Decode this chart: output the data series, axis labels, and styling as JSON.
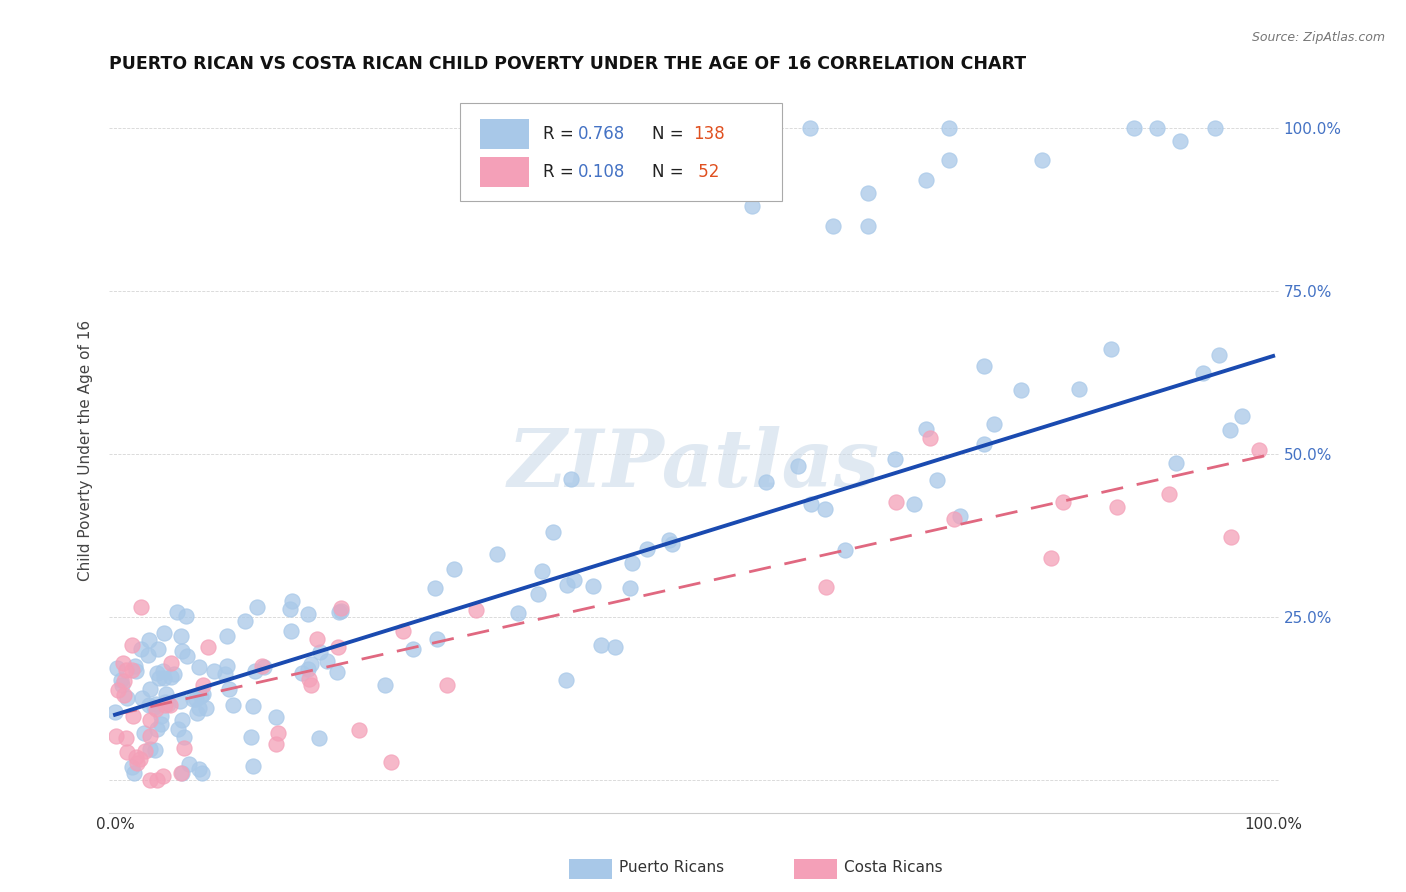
{
  "title": "PUERTO RICAN VS COSTA RICAN CHILD POVERTY UNDER THE AGE OF 16 CORRELATION CHART",
  "source": "Source: ZipAtlas.com",
  "ylabel": "Child Poverty Under the Age of 16",
  "pr_R": "0.768",
  "pr_N": "138",
  "cr_R": "0.108",
  "cr_N": "52",
  "pr_color": "#a8c8e8",
  "cr_color": "#f4a0b8",
  "pr_line_color": "#1a4ab0",
  "cr_line_color": "#e06880",
  "watermark": "ZIPatlas",
  "pr_line_intercept": 0.1,
  "pr_line_slope": 0.55,
  "cr_line_intercept": 0.1,
  "cr_line_slope": 0.4,
  "right_ytick_color": "#4472c4",
  "legend_pr_label": "Puerto Ricans",
  "legend_cr_label": "Costa Ricans"
}
